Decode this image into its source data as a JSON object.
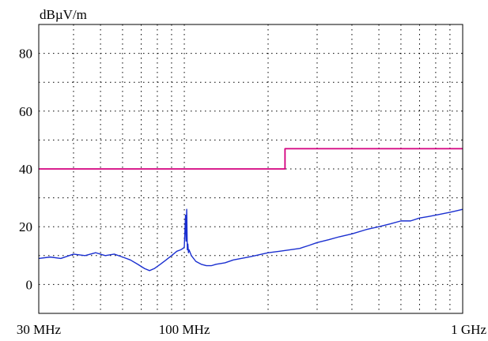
{
  "chart_data": {
    "type": "line",
    "title": "",
    "ylabel": "dBµV/m",
    "xlabel": "",
    "x_scale": "log",
    "x_unit": "MHz",
    "xlim": [
      30,
      1000
    ],
    "ylim": [
      -10,
      90
    ],
    "grid": true,
    "y_ticks": [
      0,
      20,
      40,
      60,
      80
    ],
    "x_tick_labels": [
      {
        "value": 30,
        "label": "30 MHz"
      },
      {
        "value": 100,
        "label": "100 MHz"
      },
      {
        "value": 1000,
        "label": "1 GHz"
      }
    ],
    "colors": {
      "limit": "#d4007f",
      "measurement": "#1a2fd0",
      "grid": "#000000",
      "frame": "#000000"
    },
    "series": [
      {
        "kind": "limit",
        "x": [
          30,
          230,
          230,
          1000
        ],
        "y": [
          40,
          40,
          47,
          47
        ]
      },
      {
        "kind": "measurement",
        "x": [
          30,
          33,
          36,
          40,
          44,
          48,
          52,
          56,
          60,
          64,
          68,
          72,
          75,
          78,
          82,
          86,
          90,
          94,
          97,
          99,
          100,
          101,
          101.5,
          102,
          102.5,
          103,
          103.5,
          104,
          106,
          110,
          115,
          120,
          125,
          130,
          140,
          150,
          160,
          170,
          180,
          200,
          220,
          240,
          260,
          280,
          300,
          330,
          360,
          400,
          450,
          500,
          550,
          600,
          650,
          700,
          750,
          800,
          850,
          900,
          950,
          1000
        ],
        "y": [
          9,
          9.5,
          9,
          10.5,
          10,
          11,
          10,
          10.5,
          9.5,
          8.5,
          7,
          5.5,
          4.8,
          5.5,
          7,
          8.5,
          10,
          11.5,
          12,
          12.5,
          13,
          24,
          15,
          26,
          12,
          14,
          11,
          12,
          10,
          8,
          7,
          6.5,
          6.5,
          7,
          7.5,
          8.5,
          9,
          9.5,
          10,
          11,
          11.5,
          12,
          12.5,
          13.5,
          14.5,
          15.5,
          16.5,
          17.5,
          19,
          20,
          21,
          22,
          22,
          23,
          23.5,
          24,
          24.5,
          25,
          25.5,
          26
        ]
      }
    ]
  }
}
